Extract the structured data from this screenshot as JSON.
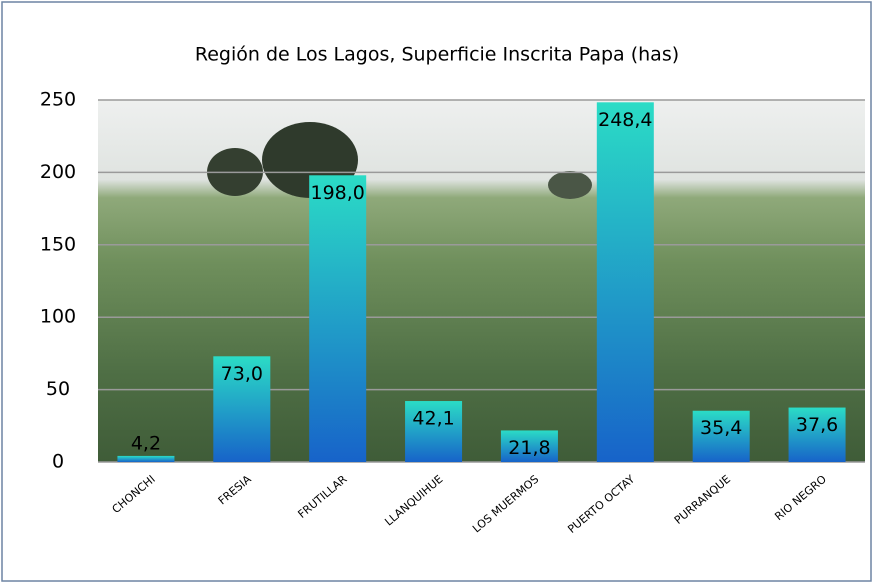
{
  "chart_data": {
    "type": "bar",
    "title": "Región de Los Lagos, Superficie Inscrita Papa (has)",
    "categories": [
      "CHONCHI",
      "FRESIA",
      "FRUTILLAR",
      "LLANQUIHUE",
      "LOS MUERMOS",
      "PUERTO OCTAY",
      "PURRANQUE",
      "RIO NEGRO"
    ],
    "values": [
      4.2,
      73.0,
      198.0,
      42.1,
      21.8,
      248.4,
      35.4,
      37.6
    ],
    "value_labels": [
      "4,2",
      "73,0",
      "198,0",
      "42,1",
      "21,8",
      "248,4",
      "35,4",
      "37,6"
    ],
    "colors": [
      "#2bdcc6",
      "#1763c9"
    ],
    "ylim": [
      0,
      250
    ],
    "yticks": [
      0,
      50,
      100,
      150,
      200,
      250
    ],
    "grid": true
  }
}
